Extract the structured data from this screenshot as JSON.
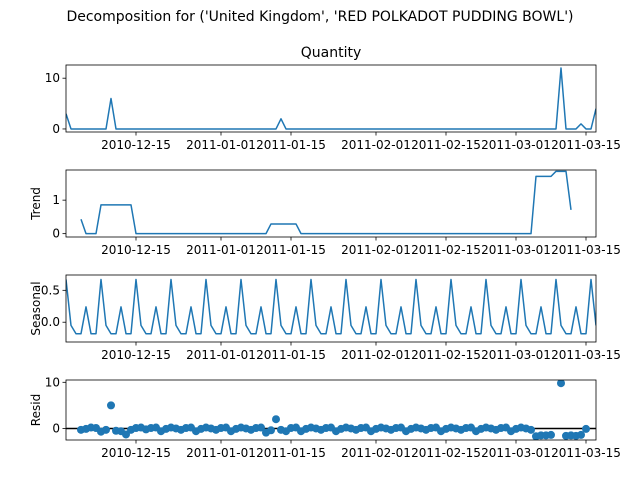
{
  "figure": {
    "suptitle": "Decomposition for ('United Kingdom', 'RED POLKADOT PUDDING BOWL')"
  },
  "colors": {
    "series": "#1f77b4",
    "axis": "#000000",
    "background": "#ffffff"
  },
  "chart_data": [
    {
      "type": "line",
      "title": "Quantity",
      "ylabel": "",
      "xlim": [
        "2010-12-01",
        "2011-03-17"
      ],
      "ylim": [
        -0.6,
        12.6
      ],
      "yticks": [
        0,
        10
      ],
      "x_tick_labels": [
        "2010-12-15",
        "2011-01-01",
        "2011-01-15",
        "2011-02-01",
        "2011-02-15",
        "2011-03-01",
        "2011-03-15"
      ],
      "x_tick_dates": [
        "2010-12-15",
        "2011-01-01",
        "2011-01-15",
        "2011-02-01",
        "2011-02-15",
        "2011-03-01",
        "2011-03-15"
      ],
      "points": [
        [
          "2010-12-01",
          3
        ],
        [
          "2010-12-02",
          0
        ],
        [
          "2010-12-09",
          0
        ],
        [
          "2010-12-10",
          6
        ],
        [
          "2010-12-11",
          0
        ],
        [
          "2011-01-12",
          0
        ],
        [
          "2011-01-13",
          2
        ],
        [
          "2011-01-14",
          0
        ],
        [
          "2011-03-09",
          0
        ],
        [
          "2011-03-10",
          12
        ],
        [
          "2011-03-11",
          0
        ],
        [
          "2011-03-13",
          0
        ],
        [
          "2011-03-14",
          1
        ],
        [
          "2011-03-15",
          0
        ],
        [
          "2011-03-16",
          0
        ],
        [
          "2011-03-17",
          4
        ]
      ]
    },
    {
      "type": "line",
      "title": "",
      "ylabel": "Trend",
      "xlim": [
        "2010-12-01",
        "2011-03-17"
      ],
      "ylim": [
        -0.1,
        1.9
      ],
      "yticks": [
        0,
        1
      ],
      "x_tick_labels": [
        "2010-12-15",
        "2011-01-01",
        "2011-01-15",
        "2011-02-01",
        "2011-02-15",
        "2011-03-01",
        "2011-03-15"
      ],
      "x_tick_dates": [
        "2010-12-15",
        "2011-01-01",
        "2011-01-15",
        "2011-02-01",
        "2011-02-15",
        "2011-03-01",
        "2011-03-15"
      ],
      "points": [
        [
          "2010-12-04",
          0.43
        ],
        [
          "2010-12-05",
          0
        ],
        [
          "2010-12-07",
          0
        ],
        [
          "2010-12-08",
          0.86
        ],
        [
          "2010-12-14",
          0.86
        ],
        [
          "2010-12-15",
          0
        ],
        [
          "2011-01-10",
          0
        ],
        [
          "2011-01-11",
          0.29
        ],
        [
          "2011-01-16",
          0.29
        ],
        [
          "2011-01-17",
          0
        ],
        [
          "2011-03-04",
          0
        ],
        [
          "2011-03-05",
          1.71
        ],
        [
          "2011-03-08",
          1.71
        ],
        [
          "2011-03-09",
          1.86
        ],
        [
          "2011-03-11",
          1.86
        ],
        [
          "2011-03-12",
          0.71
        ]
      ]
    },
    {
      "type": "line",
      "title": "",
      "ylabel": "Seasonal",
      "xlim": [
        "2010-12-01",
        "2011-03-17"
      ],
      "ylim": [
        -0.31,
        0.74
      ],
      "yticks": [
        0.0,
        0.5
      ],
      "ytick_labels": [
        "0.0",
        "0.5"
      ],
      "x_tick_labels": [
        "2010-12-15",
        "2011-01-01",
        "2011-01-15",
        "2011-02-01",
        "2011-02-15",
        "2011-03-01",
        "2011-03-15"
      ],
      "x_tick_dates": [
        "2010-12-15",
        "2011-01-01",
        "2011-01-15",
        "2011-02-01",
        "2011-02-15",
        "2011-03-01",
        "2011-03-15"
      ],
      "seasonal_start": "2010-12-01",
      "seasonal_end": "2011-03-17",
      "weekly_pattern": [
        0.67,
        -0.05,
        -0.18,
        -0.18,
        0.24,
        -0.18,
        -0.18
      ]
    },
    {
      "type": "scatter",
      "title": "",
      "ylabel": "Resid",
      "xlim": [
        "2010-12-01",
        "2011-03-17"
      ],
      "ylim": [
        -2.5,
        10.5
      ],
      "yticks": [
        0,
        10
      ],
      "baseline": 0,
      "x_tick_labels": [
        "2010-12-15",
        "2011-01-01",
        "2011-01-15",
        "2011-02-01",
        "2011-02-15",
        "2011-03-01",
        "2011-03-15"
      ],
      "x_tick_dates": [
        "2010-12-15",
        "2011-01-01",
        "2011-01-15",
        "2011-02-01",
        "2011-02-15",
        "2011-03-01",
        "2011-03-15"
      ],
      "points": [
        [
          "2010-12-04",
          -0.3
        ],
        [
          "2010-12-05",
          -0.1
        ],
        [
          "2010-12-06",
          0.2
        ],
        [
          "2010-12-07",
          0.1
        ],
        [
          "2010-12-08",
          -0.7
        ],
        [
          "2010-12-09",
          -0.3
        ],
        [
          "2010-12-10",
          5.0
        ],
        [
          "2010-12-11",
          -0.5
        ],
        [
          "2010-12-12",
          -0.6
        ],
        [
          "2010-12-13",
          -1.3
        ],
        [
          "2010-12-14",
          -0.3
        ],
        [
          "2010-12-15",
          0.1
        ],
        [
          "2010-12-16",
          0.2
        ],
        [
          "2010-12-17",
          -0.2
        ],
        [
          "2010-12-18",
          0.1
        ],
        [
          "2010-12-19",
          0.2
        ],
        [
          "2010-12-20",
          -0.6
        ],
        [
          "2010-12-21",
          -0.1
        ],
        [
          "2010-12-22",
          0.2
        ],
        [
          "2010-12-23",
          0.0
        ],
        [
          "2010-12-24",
          -0.3
        ],
        [
          "2010-12-25",
          0.1
        ],
        [
          "2010-12-26",
          0.2
        ],
        [
          "2010-12-27",
          -0.6
        ],
        [
          "2010-12-28",
          -0.1
        ],
        [
          "2010-12-29",
          0.2
        ],
        [
          "2010-12-30",
          0.0
        ],
        [
          "2010-12-31",
          -0.3
        ],
        [
          "2011-01-01",
          0.1
        ],
        [
          "2011-01-02",
          0.2
        ],
        [
          "2011-01-03",
          -0.6
        ],
        [
          "2011-01-04",
          -0.1
        ],
        [
          "2011-01-05",
          0.2
        ],
        [
          "2011-01-06",
          0.0
        ],
        [
          "2011-01-07",
          -0.3
        ],
        [
          "2011-01-08",
          0.1
        ],
        [
          "2011-01-09",
          0.2
        ],
        [
          "2011-01-10",
          -0.9
        ],
        [
          "2011-01-11",
          -0.4
        ],
        [
          "2011-01-12",
          2.0
        ],
        [
          "2011-01-13",
          -0.3
        ],
        [
          "2011-01-14",
          -0.6
        ],
        [
          "2011-01-15",
          0.1
        ],
        [
          "2011-01-16",
          0.2
        ],
        [
          "2011-01-17",
          -0.6
        ],
        [
          "2011-01-18",
          -0.1
        ],
        [
          "2011-01-19",
          0.2
        ],
        [
          "2011-01-20",
          0.0
        ],
        [
          "2011-01-21",
          -0.3
        ],
        [
          "2011-01-22",
          0.1
        ],
        [
          "2011-01-23",
          0.2
        ],
        [
          "2011-01-24",
          -0.6
        ],
        [
          "2011-01-25",
          -0.1
        ],
        [
          "2011-01-26",
          0.2
        ],
        [
          "2011-01-27",
          0.0
        ],
        [
          "2011-01-28",
          -0.3
        ],
        [
          "2011-01-29",
          0.1
        ],
        [
          "2011-01-30",
          0.2
        ],
        [
          "2011-01-31",
          -0.6
        ],
        [
          "2011-02-01",
          -0.1
        ],
        [
          "2011-02-02",
          0.2
        ],
        [
          "2011-02-03",
          0.0
        ],
        [
          "2011-02-04",
          -0.3
        ],
        [
          "2011-02-05",
          0.1
        ],
        [
          "2011-02-06",
          0.2
        ],
        [
          "2011-02-07",
          -0.6
        ],
        [
          "2011-02-08",
          -0.1
        ],
        [
          "2011-02-09",
          0.2
        ],
        [
          "2011-02-10",
          0.0
        ],
        [
          "2011-02-11",
          -0.3
        ],
        [
          "2011-02-12",
          0.1
        ],
        [
          "2011-02-13",
          0.2
        ],
        [
          "2011-02-14",
          -0.6
        ],
        [
          "2011-02-15",
          -0.1
        ],
        [
          "2011-02-16",
          0.2
        ],
        [
          "2011-02-17",
          0.0
        ],
        [
          "2011-02-18",
          -0.3
        ],
        [
          "2011-02-19",
          0.1
        ],
        [
          "2011-02-20",
          0.2
        ],
        [
          "2011-02-21",
          -0.6
        ],
        [
          "2011-02-22",
          -0.1
        ],
        [
          "2011-02-23",
          0.2
        ],
        [
          "2011-02-24",
          0.0
        ],
        [
          "2011-02-25",
          -0.3
        ],
        [
          "2011-02-26",
          0.1
        ],
        [
          "2011-02-27",
          0.2
        ],
        [
          "2011-02-28",
          -0.6
        ],
        [
          "2011-03-01",
          -0.1
        ],
        [
          "2011-03-02",
          0.2
        ],
        [
          "2011-03-03",
          0.0
        ],
        [
          "2011-03-04",
          -0.3
        ],
        [
          "2011-03-05",
          -1.7
        ],
        [
          "2011-03-06",
          -1.5
        ],
        [
          "2011-03-07",
          -1.5
        ],
        [
          "2011-03-08",
          -1.4
        ],
        [
          "2011-03-10",
          9.8
        ],
        [
          "2011-03-11",
          -1.6
        ],
        [
          "2011-03-12",
          -1.5
        ],
        [
          "2011-03-13",
          -1.6
        ],
        [
          "2011-03-14",
          -1.4
        ],
        [
          "2011-03-15",
          -0.1
        ]
      ]
    }
  ]
}
